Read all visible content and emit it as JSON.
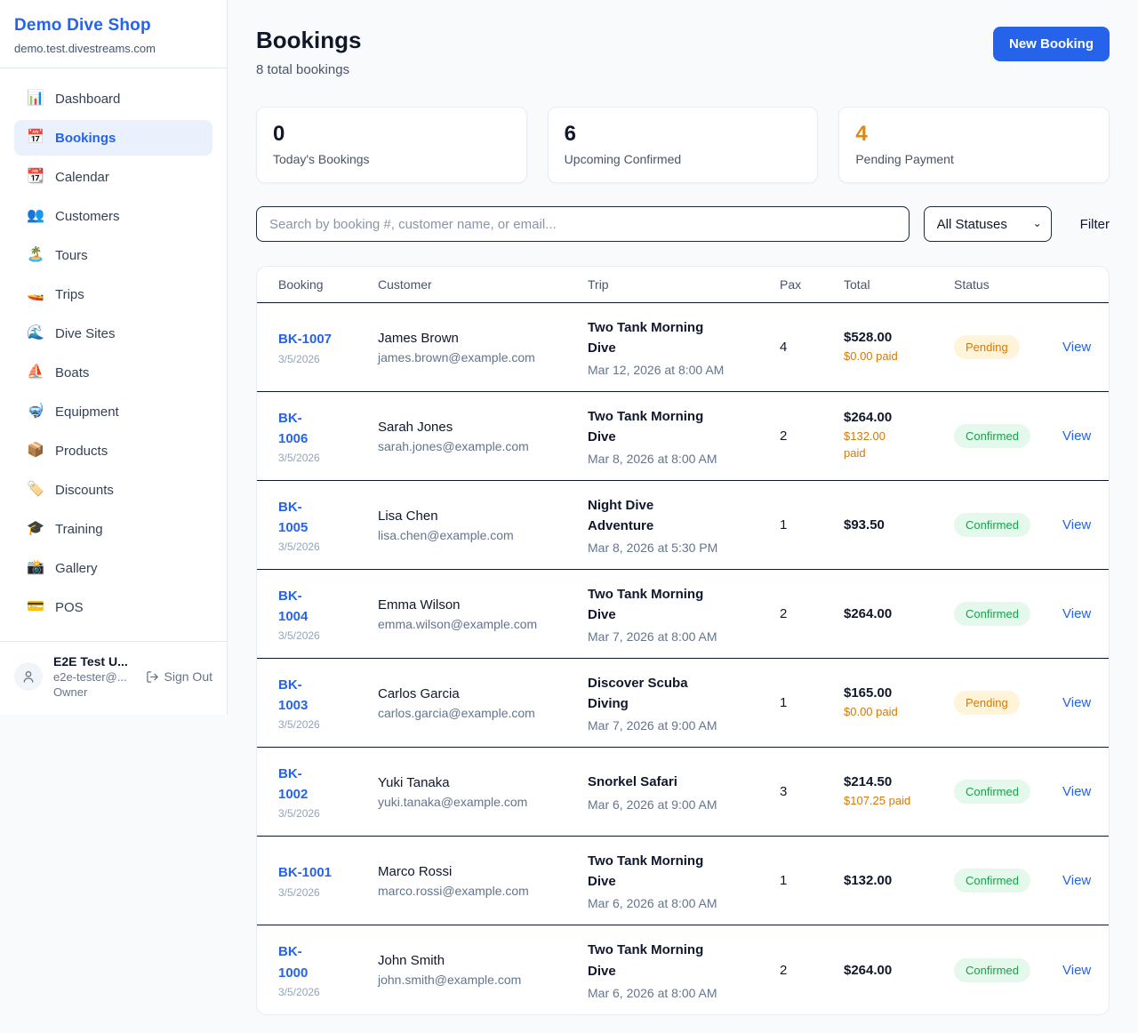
{
  "sidebar": {
    "brand": "Demo Dive Shop",
    "domain": "demo.test.divestreams.com",
    "items": [
      {
        "icon": "📊",
        "icon_name": "bar-chart-icon",
        "label": "Dashboard",
        "active": false
      },
      {
        "icon": "📅",
        "icon_name": "calendar-icon",
        "label": "Bookings",
        "active": true
      },
      {
        "icon": "📆",
        "icon_name": "tear-off-calendar-icon",
        "label": "Calendar",
        "active": false
      },
      {
        "icon": "👥",
        "icon_name": "people-icon",
        "label": "Customers",
        "active": false
      },
      {
        "icon": "🏝️",
        "icon_name": "desert-island-icon",
        "label": "Tours",
        "active": false
      },
      {
        "icon": "🚤",
        "icon_name": "speedboat-icon",
        "label": "Trips",
        "active": false
      },
      {
        "icon": "🌊",
        "icon_name": "wave-icon",
        "label": "Dive Sites",
        "active": false
      },
      {
        "icon": "⛵",
        "icon_name": "sailboat-icon",
        "label": "Boats",
        "active": false
      },
      {
        "icon": "🤿",
        "icon_name": "diving-mask-icon",
        "label": "Equipment",
        "active": false
      },
      {
        "icon": "📦",
        "icon_name": "package-icon",
        "label": "Products",
        "active": false
      },
      {
        "icon": "🏷️",
        "icon_name": "tag-icon",
        "label": "Discounts",
        "active": false
      },
      {
        "icon": "🎓",
        "icon_name": "graduation-cap-icon",
        "label": "Training",
        "active": false
      },
      {
        "icon": "📸",
        "icon_name": "camera-icon",
        "label": "Gallery",
        "active": false
      },
      {
        "icon": "💳",
        "icon_name": "credit-card-icon",
        "label": "POS",
        "active": false
      }
    ],
    "user": {
      "name": "E2E Test U...",
      "email": "e2e-tester@...",
      "role": "Owner",
      "sign_out_label": "Sign Out"
    }
  },
  "header": {
    "title": "Bookings",
    "subtitle": "8 total bookings",
    "new_booking_label": "New Booking"
  },
  "stats": [
    {
      "value": "0",
      "label": "Today's Bookings",
      "accent": false
    },
    {
      "value": "6",
      "label": "Upcoming Confirmed",
      "accent": false
    },
    {
      "value": "4",
      "label": "Pending Payment",
      "accent": true
    }
  ],
  "filters": {
    "search_placeholder": "Search by booking #, customer name, or email...",
    "status_selected": "All Statuses",
    "filter_label": "Filter"
  },
  "table": {
    "columns": [
      "Booking",
      "Customer",
      "Trip",
      "Pax",
      "Total",
      "Status"
    ],
    "rows": [
      {
        "id": "BK-1007",
        "date": "3/5/2026",
        "customer": "James Brown",
        "email": "james.brown@example.com",
        "trip": "Two Tank Morning Dive",
        "trip_time": "Mar 12, 2026 at 8:00 AM",
        "pax": "4",
        "total": "$528.00",
        "paid": "$0.00 paid",
        "status": "Pending",
        "action": "View"
      },
      {
        "id": "BK-\n1006",
        "date": "3/5/2026",
        "customer": "Sarah Jones",
        "email": "sarah.jones@example.com",
        "trip": "Two Tank Morning Dive",
        "trip_time": "Mar 8, 2026 at 8:00 AM",
        "pax": "2",
        "total": "$264.00",
        "paid": "$132.00\npaid",
        "status": "Confirmed",
        "action": "View"
      },
      {
        "id": "BK-\n1005",
        "date": "3/5/2026",
        "customer": "Lisa Chen",
        "email": "lisa.chen@example.com",
        "trip": "Night Dive Adventure",
        "trip_time": "Mar 8, 2026 at 5:30 PM",
        "pax": "1",
        "total": "$93.50",
        "paid": "",
        "status": "Confirmed",
        "action": "View"
      },
      {
        "id": "BK-\n1004",
        "date": "3/5/2026",
        "customer": "Emma Wilson",
        "email": "emma.wilson@example.com",
        "trip": "Two Tank Morning Dive",
        "trip_time": "Mar 7, 2026 at 8:00 AM",
        "pax": "2",
        "total": "$264.00",
        "paid": "",
        "status": "Confirmed",
        "action": "View"
      },
      {
        "id": "BK-\n1003",
        "date": "3/5/2026",
        "customer": "Carlos Garcia",
        "email": "carlos.garcia@example.com",
        "trip": "Discover Scuba Diving",
        "trip_time": "Mar 7, 2026 at 9:00 AM",
        "pax": "1",
        "total": "$165.00",
        "paid": "$0.00 paid",
        "status": "Pending",
        "action": "View"
      },
      {
        "id": "BK-\n1002",
        "date": "3/5/2026",
        "customer": "Yuki Tanaka",
        "email": "yuki.tanaka@example.com",
        "trip": "Snorkel Safari",
        "trip_time": "Mar 6, 2026 at 9:00 AM",
        "pax": "3",
        "total": "$214.50",
        "paid": "$107.25 paid",
        "status": "Confirmed",
        "action": "View"
      },
      {
        "id": "BK-1001",
        "date": "3/5/2026",
        "customer": "Marco Rossi",
        "email": "marco.rossi@example.com",
        "trip": "Two Tank Morning Dive",
        "trip_time": "Mar 6, 2026 at 8:00 AM",
        "pax": "1",
        "total": "$132.00",
        "paid": "",
        "status": "Confirmed",
        "action": "View"
      },
      {
        "id": "BK-\n1000",
        "date": "3/5/2026",
        "customer": "John Smith",
        "email": "john.smith@example.com",
        "trip": "Two Tank Morning Dive",
        "trip_time": "Mar 6, 2026 at 8:00 AM",
        "pax": "2",
        "total": "$264.00",
        "paid": "",
        "status": "Confirmed",
        "action": "View"
      }
    ]
  },
  "colors": {
    "accent_blue": "#2563eb",
    "pending_orange": "#d97706",
    "confirmed_green": "#16a34a",
    "page_background": "#f8fafc",
    "row_divider": "#0f172a"
  }
}
